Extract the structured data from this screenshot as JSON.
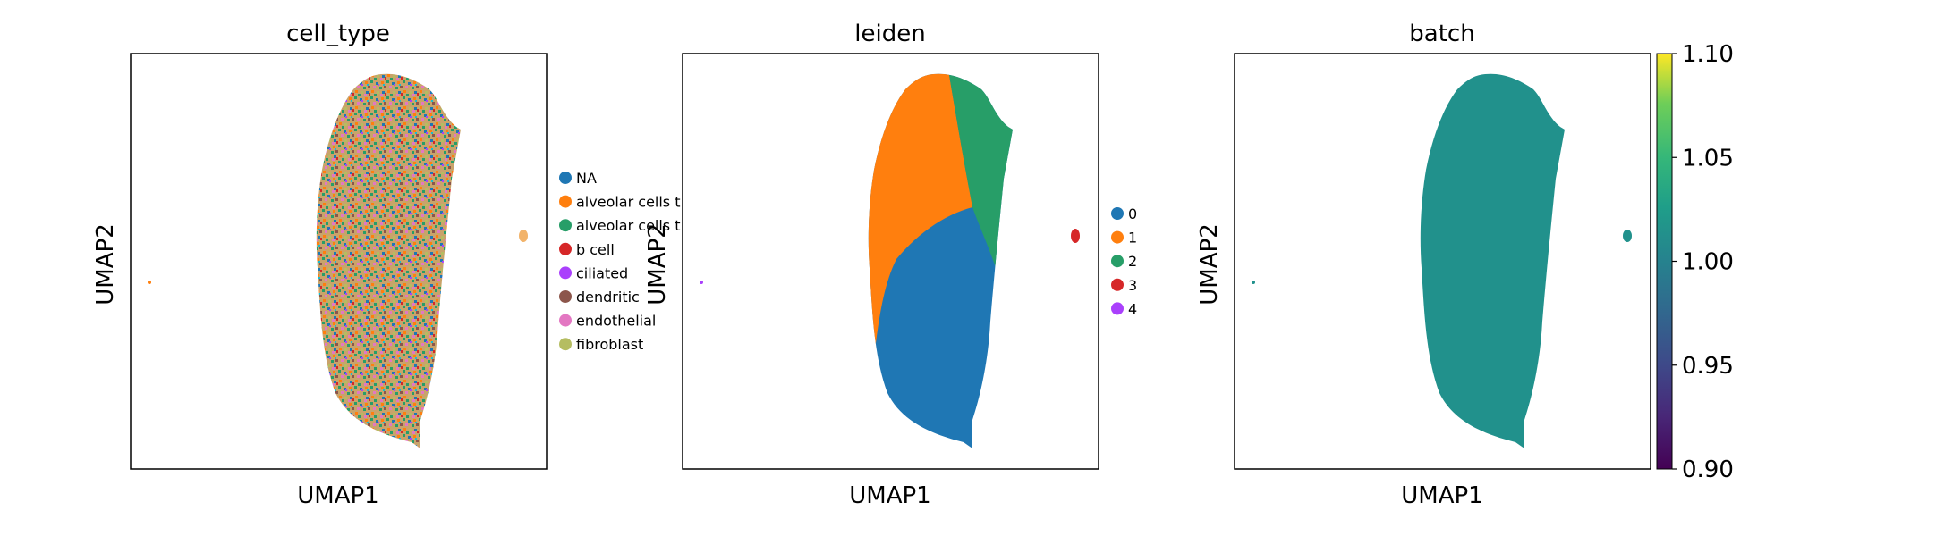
{
  "chart_data": [
    {
      "type": "scatter",
      "title": "cell_type",
      "xlabel": "UMAP1",
      "ylabel": "UMAP2",
      "legend_position": "right",
      "legend": [
        {
          "label": "NA",
          "color": "#1f77b4"
        },
        {
          "label": "alveolar cells t",
          "color": "#ff7f0e"
        },
        {
          "label": "alveolar cells t",
          "color": "#279e68"
        },
        {
          "label": "b cell",
          "color": "#d62728"
        },
        {
          "label": "ciliated",
          "color": "#aa40fc"
        },
        {
          "label": "dendritic",
          "color": "#8c564b"
        },
        {
          "label": "endothelial",
          "color": "#e377c2"
        },
        {
          "label": "fibroblast",
          "color": "#b5bd61"
        }
      ]
    },
    {
      "type": "scatter",
      "title": "leiden",
      "xlabel": "UMAP1",
      "ylabel": "UMAP2",
      "legend_position": "right",
      "legend": [
        {
          "label": "0",
          "color": "#1f77b4"
        },
        {
          "label": "1",
          "color": "#ff7f0e"
        },
        {
          "label": "2",
          "color": "#279e68"
        },
        {
          "label": "3",
          "color": "#d62728"
        },
        {
          "label": "4",
          "color": "#aa40fc"
        }
      ]
    },
    {
      "type": "scatter",
      "title": "batch",
      "xlabel": "UMAP1",
      "ylabel": "UMAP2",
      "point_color": "#21918c",
      "colorbar": {
        "colormap": "viridis",
        "range": [
          0.9,
          1.1
        ],
        "ticks": [
          "1.10",
          "1.05",
          "1.00",
          "0.95",
          "0.90"
        ]
      }
    }
  ]
}
